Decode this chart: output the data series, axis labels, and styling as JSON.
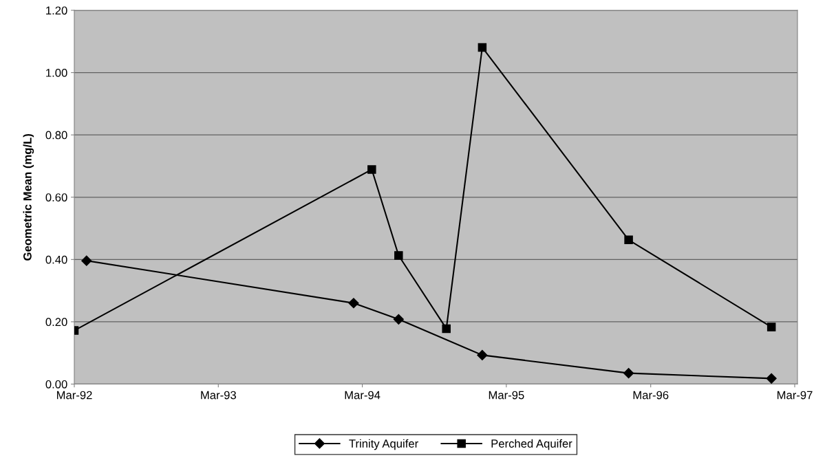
{
  "chart_data": {
    "type": "line",
    "ylabel": "Geometric Mean (mg/L)",
    "series": [
      {
        "name": "Trinity Aquifer",
        "color": "#000000",
        "marker": "diamond",
        "x": [
          "1992-04-01",
          "1994-02-07",
          "1994-06-01",
          "1994-12-30",
          "1996-01-05",
          "1997-01-01"
        ],
        "values": [
          0.396,
          0.26,
          0.208,
          0.093,
          0.035,
          0.018
        ]
      },
      {
        "name": "Perched Aquifer",
        "color": "#000000",
        "marker": "square",
        "x": [
          "1992-03-01",
          "1994-03-25",
          "1994-06-01",
          "1994-09-30",
          "1994-12-30",
          "1996-01-05",
          "1997-01-01"
        ],
        "values": [
          0.172,
          0.689,
          0.413,
          0.178,
          1.081,
          0.463,
          0.183
        ]
      }
    ],
    "xlim": [
      "1992-03-01",
      "1997-03-08"
    ],
    "xticks": [
      {
        "value": "1992-03-01",
        "label": "Mar-92"
      },
      {
        "value": "1993-03-01",
        "label": "Mar-93"
      },
      {
        "value": "1994-03-01",
        "label": "Mar-94"
      },
      {
        "value": "1995-03-01",
        "label": "Mar-95"
      },
      {
        "value": "1996-03-01",
        "label": "Mar-96"
      },
      {
        "value": "1997-03-01",
        "label": "Mar-97"
      }
    ],
    "ylim": [
      0,
      1.2
    ],
    "yticks": [
      {
        "value": 0,
        "label": "0.00"
      },
      {
        "value": 0.2,
        "label": "0.20"
      },
      {
        "value": 0.4,
        "label": "0.40"
      },
      {
        "value": 0.6,
        "label": "0.60"
      },
      {
        "value": 0.8,
        "label": "0.80"
      },
      {
        "value": 1.0,
        "label": "1.00"
      },
      {
        "value": 1.2,
        "label": "1.20"
      }
    ],
    "grid": "y",
    "legend": "bottom",
    "line_style": "solid"
  }
}
